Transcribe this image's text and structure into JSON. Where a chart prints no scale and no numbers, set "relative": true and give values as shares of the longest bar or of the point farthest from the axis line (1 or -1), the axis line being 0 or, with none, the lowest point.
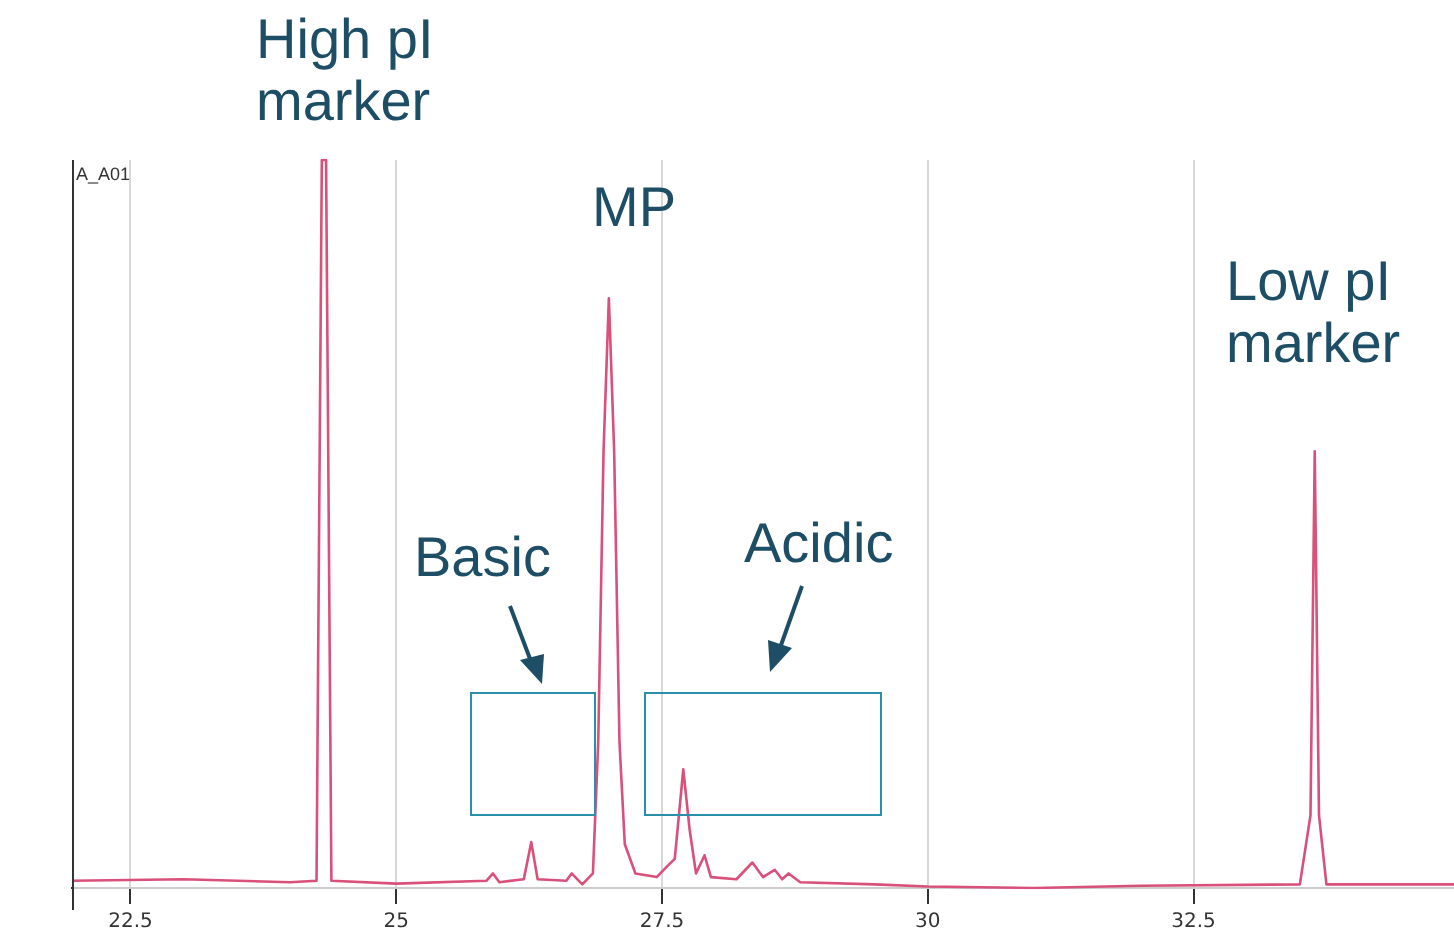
{
  "chart_data": {
    "type": "line",
    "relative": true,
    "xlim": [
      21.95,
      34.95
    ],
    "xticks": [
      22.5,
      25,
      27.5,
      30,
      32.5
    ],
    "grid": "x",
    "legend": false,
    "marker": "none",
    "annotations": [
      "High pI marker",
      "MP",
      "Low pI marker",
      "Basic",
      "Acidic",
      "A_A01"
    ],
    "series": [
      {
        "color": "#d9507a",
        "x": [
          21.95,
          23.0,
          24.0,
          24.25,
          24.3,
          24.34,
          24.39,
          25.0,
          25.85,
          25.91,
          25.97,
          26.2,
          26.27,
          26.33,
          26.6,
          26.65,
          26.75,
          26.85,
          26.9,
          26.95,
          27.0,
          27.05,
          27.1,
          27.15,
          27.25,
          27.45,
          27.55,
          27.62,
          27.7,
          27.76,
          27.82,
          27.9,
          27.96,
          28.2,
          28.35,
          28.45,
          28.56,
          28.63,
          28.69,
          28.8,
          29.5,
          30,
          31,
          32,
          33.5,
          33.6,
          33.64,
          33.68,
          33.75,
          34.95
        ],
        "values": [
          0.01,
          0.012,
          0.008,
          0.01,
          1,
          1,
          0.01,
          0.006,
          0.01,
          0.02,
          0.008,
          0.012,
          0.063,
          0.012,
          0.01,
          0.02,
          0.005,
          0.02,
          0.2,
          0.6,
          0.81,
          0.6,
          0.2,
          0.06,
          0.02,
          0.015,
          0.03,
          0.04,
          0.163,
          0.08,
          0.02,
          0.045,
          0.015,
          0.012,
          0.035,
          0.015,
          0.025,
          0.012,
          0.02,
          0.008,
          0.005,
          0.002,
          0,
          0.003,
          0.005,
          0.1,
          0.6,
          0.1,
          0.005,
          0.005
        ]
      }
    ]
  }
}
